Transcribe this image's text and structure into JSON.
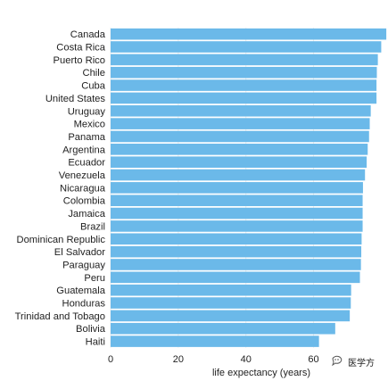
{
  "chart_data": {
    "type": "bar",
    "orientation": "horizontal",
    "categories": [
      "Canada",
      "Costa Rica",
      "Puerto Rico",
      "Chile",
      "Cuba",
      "United States",
      "Uruguay",
      "Mexico",
      "Panama",
      "Argentina",
      "Ecuador",
      "Venezuela",
      "Nicaragua",
      "Colombia",
      "Jamaica",
      "Brazil",
      "Dominican Republic",
      "El Salvador",
      "Paraguay",
      "Peru",
      "Guatemala",
      "Honduras",
      "Trinidad and Tobago",
      "Bolivia",
      "Haiti"
    ],
    "values": [
      81.5,
      80.0,
      79.0,
      78.7,
      78.6,
      78.6,
      76.9,
      76.6,
      76.4,
      76.0,
      75.7,
      75.2,
      74.6,
      74.5,
      74.5,
      74.5,
      74.2,
      74.1,
      74.0,
      73.7,
      71.1,
      71.0,
      70.7,
      66.4,
      61.6
    ],
    "xlabel": "life expectancy (years)",
    "ylabel": "",
    "xlim": [
      0,
      82
    ],
    "xticks": [
      0,
      20,
      40,
      60
    ],
    "bar_color": "#6bb9e9",
    "grid": true,
    "grid_color": "#ececec"
  },
  "watermark": {
    "text": "医学方",
    "icon": "chat-bubble-icon"
  }
}
